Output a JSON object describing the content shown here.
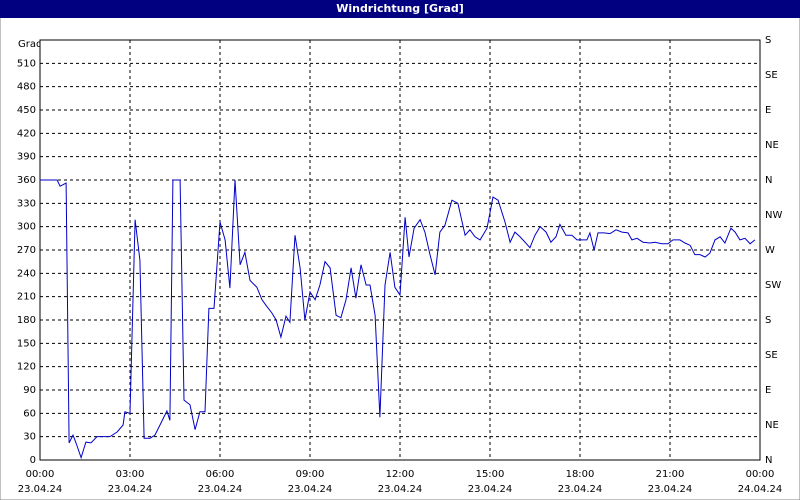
{
  "chart_data": {
    "type": "line",
    "title": "Windrichtung [Grad]",
    "ylabel": "Grad",
    "x": [
      0,
      0.57,
      0.67,
      0.87,
      0.97,
      1.1,
      1.2,
      1.37,
      1.53,
      1.7,
      1.9,
      2.1,
      2.33,
      2.57,
      2.77,
      2.83,
      3.0,
      3.17,
      3.33,
      3.47,
      3.67,
      3.83,
      4.0,
      4.23,
      4.33,
      4.43,
      4.67,
      4.8,
      5.0,
      5.17,
      5.33,
      5.5,
      5.63,
      5.8,
      6.0,
      6.17,
      6.33,
      6.5,
      6.67,
      6.83,
      7.0,
      7.23,
      7.4,
      7.53,
      7.73,
      7.87,
      8.03,
      8.2,
      8.33,
      8.5,
      8.67,
      8.83,
      9.0,
      9.17,
      9.33,
      9.5,
      9.67,
      9.87,
      10.03,
      10.2,
      10.37,
      10.53,
      10.7,
      10.87,
      11.0,
      11.17,
      11.33,
      11.5,
      11.67,
      11.83,
      12.0,
      12.17,
      12.3,
      12.47,
      12.67,
      12.83,
      13.0,
      13.17,
      13.33,
      13.5,
      13.73,
      13.93,
      14.17,
      14.33,
      14.5,
      14.67,
      14.9,
      15.1,
      15.27,
      15.5,
      15.67,
      15.83,
      16.0,
      16.17,
      16.33,
      16.5,
      16.67,
      16.87,
      17.03,
      17.2,
      17.33,
      17.53,
      17.73,
      17.9,
      18.07,
      18.23,
      18.33,
      18.47,
      18.6,
      18.8,
      19.0,
      19.2,
      19.4,
      19.6,
      19.73,
      19.9,
      20.1,
      20.33,
      20.5,
      20.73,
      20.93,
      21.1,
      21.33,
      21.5,
      21.67,
      21.83,
      22.0,
      22.17,
      22.33,
      22.5,
      22.67,
      22.83,
      23.03,
      23.17,
      23.33,
      23.5,
      23.67,
      23.83
    ],
    "series": [
      {
        "name": "Windrichtung",
        "color": "#0000c8",
        "values": [
          360,
          360,
          352,
          356,
          22,
          32,
          22,
          3,
          23,
          22,
          30,
          30,
          30,
          36,
          45,
          62,
          60,
          309,
          257,
          28,
          28,
          32,
          45,
          63,
          51,
          360,
          360,
          77,
          71,
          39,
          62,
          62,
          195,
          195,
          306,
          283,
          221,
          360,
          251,
          267,
          231,
          222,
          206,
          199,
          189,
          180,
          158,
          185,
          177,
          289,
          247,
          180,
          216,
          206,
          225,
          255,
          247,
          186,
          183,
          206,
          247,
          208,
          251,
          225,
          225,
          186,
          55,
          225,
          267,
          222,
          212,
          312,
          261,
          298,
          309,
          293,
          264,
          238,
          293,
          302,
          334,
          330,
          289,
          296,
          287,
          283,
          298,
          338,
          334,
          306,
          280,
          293,
          287,
          280,
          273,
          289,
          300,
          293,
          280,
          287,
          303,
          289,
          289,
          283,
          283,
          283,
          292,
          270,
          292,
          292,
          291,
          296,
          293,
          292,
          283,
          285,
          280,
          279,
          280,
          278,
          278,
          283,
          283,
          279,
          276,
          264,
          264,
          261,
          266,
          283,
          287,
          279,
          298,
          293,
          283,
          285,
          278,
          283
        ]
      }
    ],
    "xlim": [
      0,
      24
    ],
    "xticks": [
      {
        "value": 0,
        "label": "00:00"
      },
      {
        "value": 3,
        "label": "03:00"
      },
      {
        "value": 6,
        "label": "06:00"
      },
      {
        "value": 9,
        "label": "09:00"
      },
      {
        "value": 12,
        "label": "12:00"
      },
      {
        "value": 15,
        "label": "15:00"
      },
      {
        "value": 18,
        "label": "18:00"
      },
      {
        "value": 21,
        "label": "21:00"
      },
      {
        "value": 24,
        "label": "00:00"
      }
    ],
    "xtick_dates": [
      "23.04.24",
      "23.04.24",
      "23.04.24",
      "23.04.24",
      "23.04.24",
      "23.04.24",
      "23.04.24",
      "23.04.24",
      "24.04.24"
    ],
    "ylim": [
      0,
      540
    ],
    "yticks": [
      0,
      30,
      60,
      90,
      120,
      150,
      180,
      210,
      240,
      270,
      300,
      330,
      360,
      390,
      420,
      450,
      480,
      510
    ],
    "y2lim": [
      0,
      540
    ],
    "y2ticks": [
      {
        "value": 0,
        "label": "N"
      },
      {
        "value": 45,
        "label": "NE"
      },
      {
        "value": 90,
        "label": "E"
      },
      {
        "value": 135,
        "label": "SE"
      },
      {
        "value": 180,
        "label": "S"
      },
      {
        "value": 225,
        "label": "SW"
      },
      {
        "value": 270,
        "label": "W"
      },
      {
        "value": 315,
        "label": "NW"
      },
      {
        "value": 360,
        "label": "N"
      },
      {
        "value": 405,
        "label": "NE"
      },
      {
        "value": 450,
        "label": "E"
      },
      {
        "value": 495,
        "label": "SE"
      },
      {
        "value": 540,
        "label": "S"
      }
    ],
    "grid": true
  }
}
